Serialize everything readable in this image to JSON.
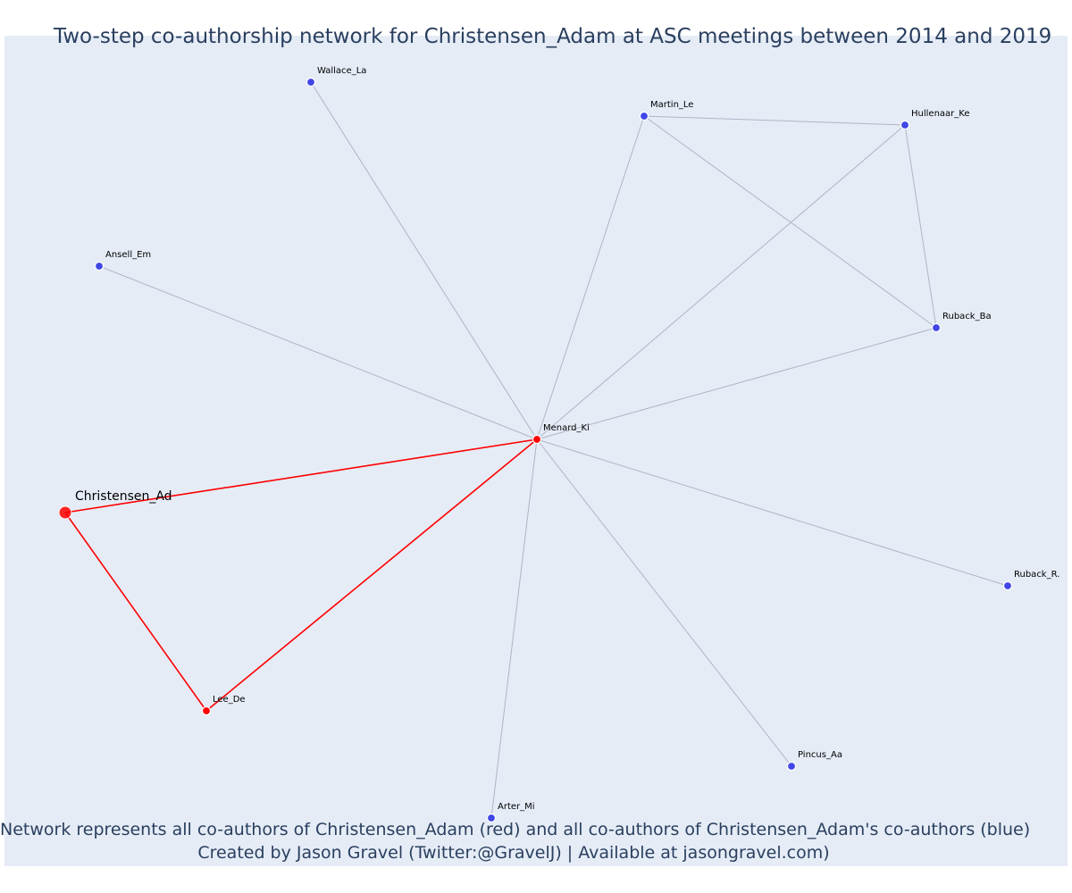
{
  "title": "Two-step co-authorship network for Christensen_Adam at ASC meetings between 2014 and 2019",
  "footer": {
    "line1": "Network represents all co-authors of Christensen_Adam (red) and all co-authors of Christensen_Adam's co-authors (blue)",
    "line2": "Created by Jason Gravel (Twitter:@GravelJ) | Available at jasongravel.com)"
  },
  "colors": {
    "plot_background": "#e5ecf6",
    "first_step": "#ff0000",
    "second_step": "#4046e6",
    "edge_second": "#b0b4c6",
    "title_text": "#2a3f5f"
  },
  "graph": {
    "focal_node": "Christensen_Ad",
    "nodes": [
      {
        "id": "Christensen_Ad",
        "label": "Christensen_Ad",
        "group": "focal"
      },
      {
        "id": "Menard_Ki",
        "label": "Menard_Ki",
        "group": "coauthor"
      },
      {
        "id": "Lee_De",
        "label": "Lee_De",
        "group": "coauthor"
      },
      {
        "id": "Wallace_La",
        "label": "Wallace_La",
        "group": "second"
      },
      {
        "id": "Martin_Le",
        "label": "Martin_Le",
        "group": "second"
      },
      {
        "id": "Hullenaar_Ke",
        "label": "Hullenaar_Ke",
        "group": "second"
      },
      {
        "id": "Ansell_Em",
        "label": "Ansell_Em",
        "group": "second"
      },
      {
        "id": "Ruback_Ba",
        "label": "Ruback_Ba",
        "group": "second"
      },
      {
        "id": "Ruback_R.",
        "label": "Ruback_R.",
        "group": "second"
      },
      {
        "id": "Pincus_Aa",
        "label": "Pincus_Aa",
        "group": "second"
      },
      {
        "id": "Arter_Mi",
        "label": "Arter_Mi",
        "group": "second"
      }
    ],
    "edges": [
      {
        "source": "Christensen_Ad",
        "target": "Menard_Ki",
        "group": "first"
      },
      {
        "source": "Christensen_Ad",
        "target": "Lee_De",
        "group": "first"
      },
      {
        "source": "Lee_De",
        "target": "Menard_Ki",
        "group": "first"
      },
      {
        "source": "Menard_Ki",
        "target": "Wallace_La",
        "group": "second"
      },
      {
        "source": "Menard_Ki",
        "target": "Martin_Le",
        "group": "second"
      },
      {
        "source": "Menard_Ki",
        "target": "Hullenaar_Ke",
        "group": "second"
      },
      {
        "source": "Menard_Ki",
        "target": "Ansell_Em",
        "group": "second"
      },
      {
        "source": "Menard_Ki",
        "target": "Ruback_Ba",
        "group": "second"
      },
      {
        "source": "Menard_Ki",
        "target": "Ruback_R.",
        "group": "second"
      },
      {
        "source": "Menard_Ki",
        "target": "Pincus_Aa",
        "group": "second"
      },
      {
        "source": "Menard_Ki",
        "target": "Arter_Mi",
        "group": "second"
      },
      {
        "source": "Martin_Le",
        "target": "Hullenaar_Ke",
        "group": "second"
      },
      {
        "source": "Martin_Le",
        "target": "Ruback_Ba",
        "group": "second"
      },
      {
        "source": "Hullenaar_Ke",
        "target": "Ruback_Ba",
        "group": "second"
      }
    ]
  }
}
